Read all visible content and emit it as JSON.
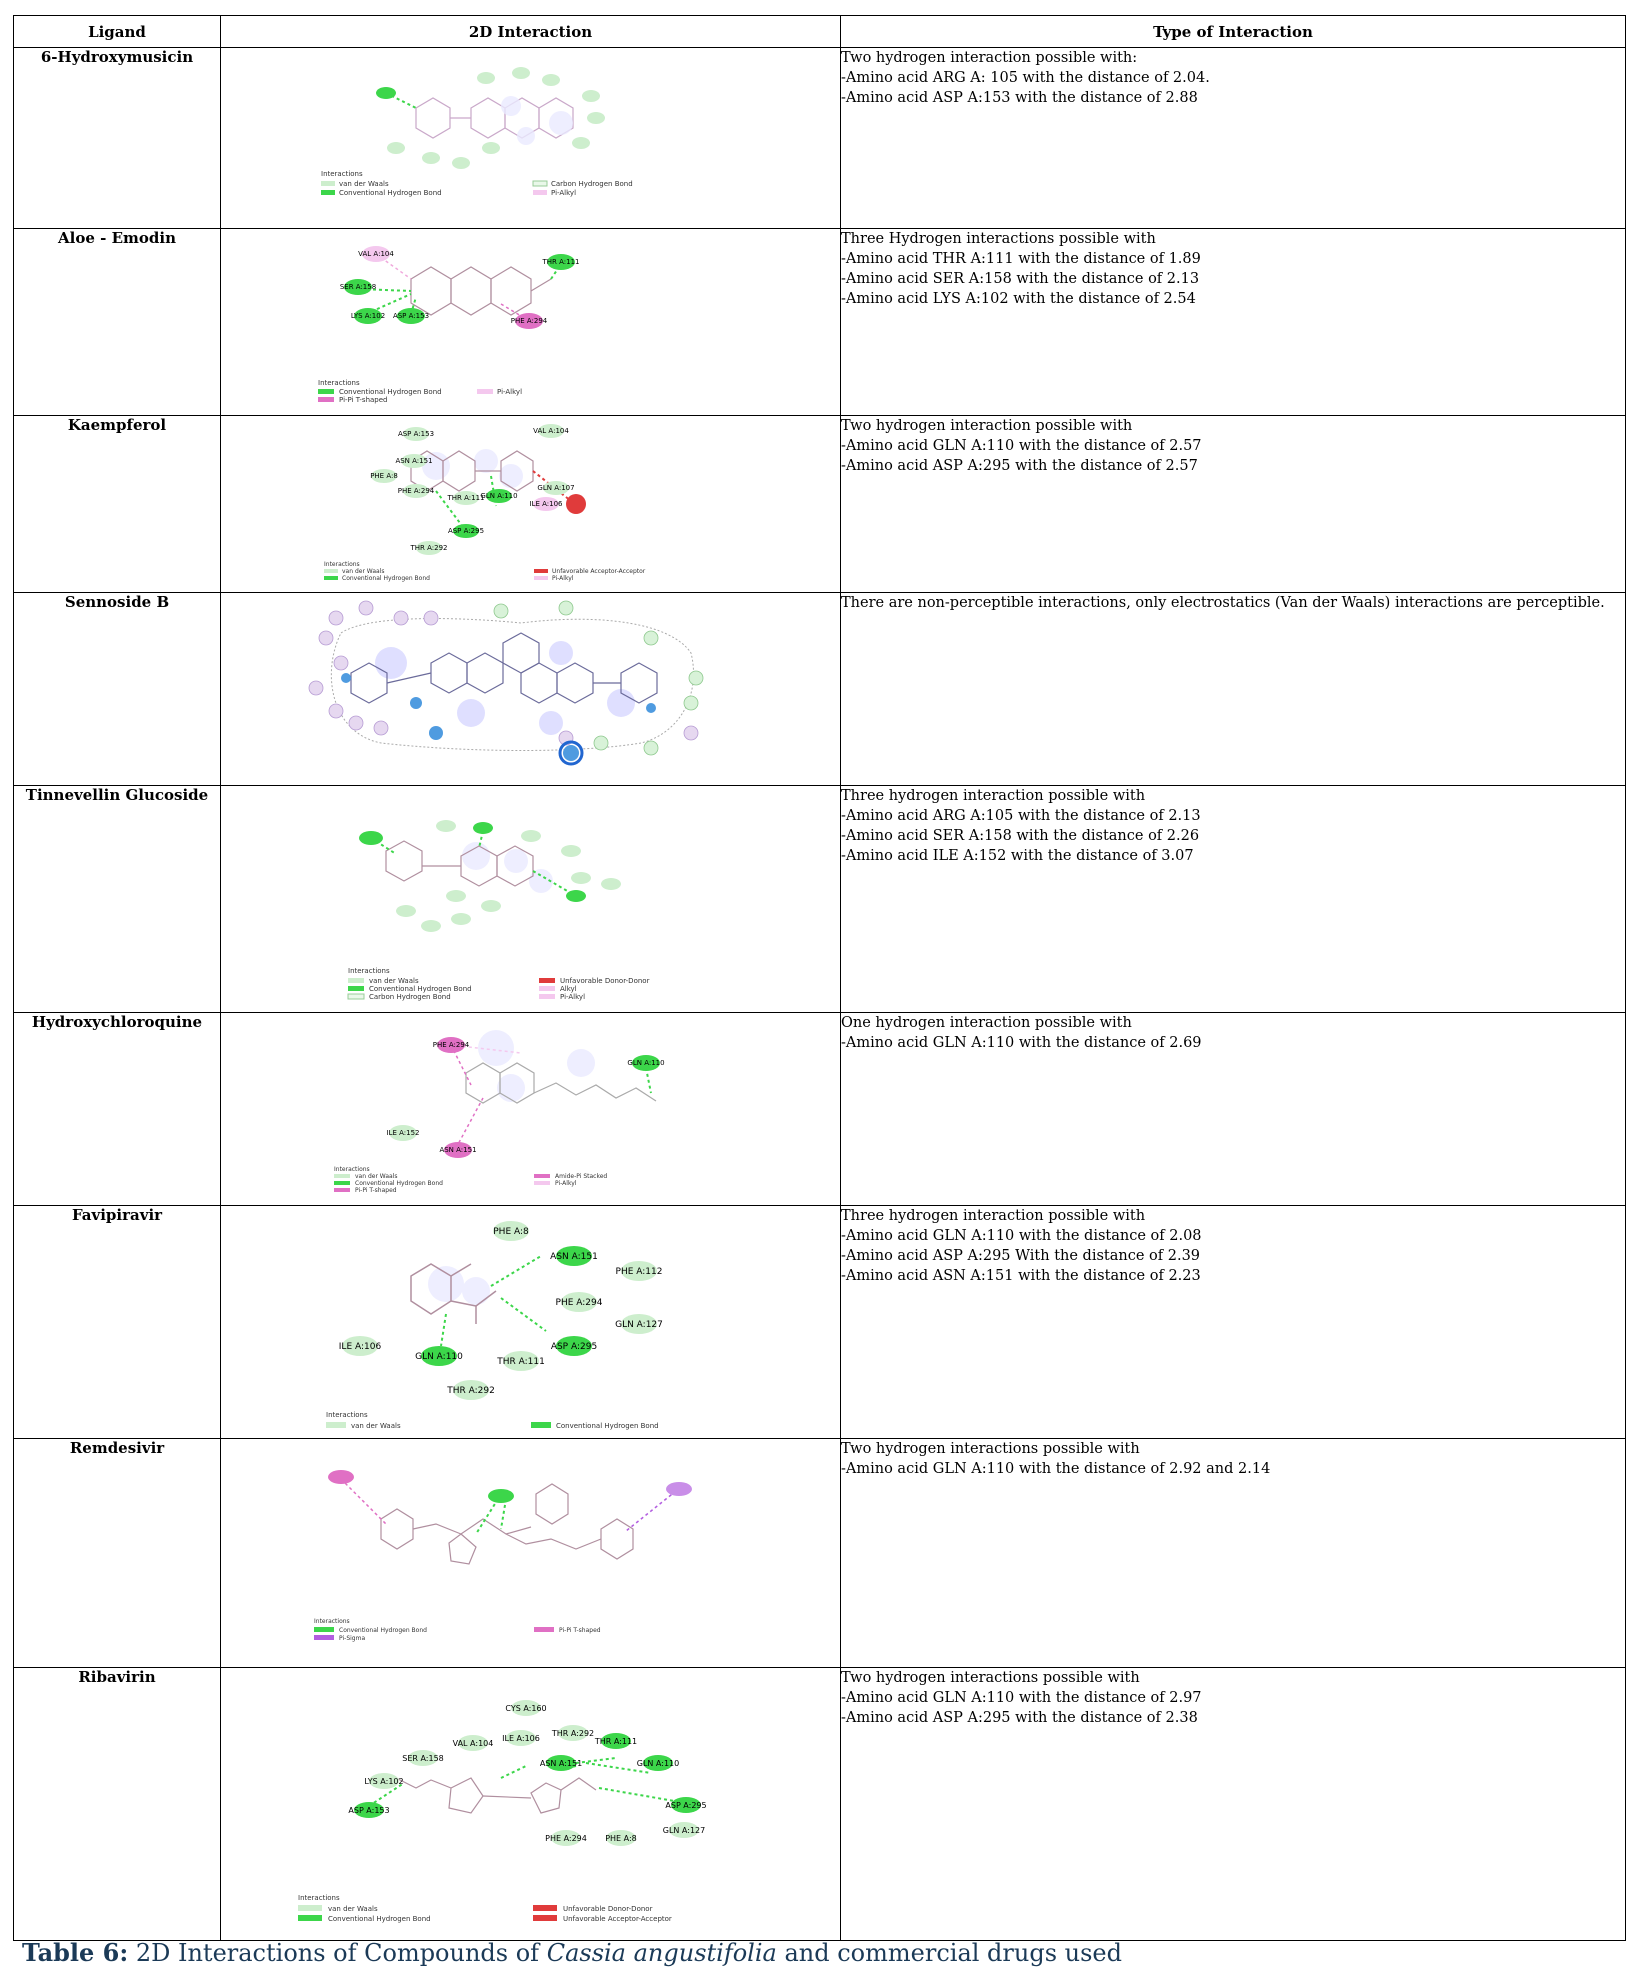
{
  "headers": [
    "Ligand",
    "2D Interaction",
    "Type of Interaction"
  ],
  "rows": [
    {
      "ligand": "6-Hydroxymusicin",
      "lines": [
        "Two hydrogen interaction possible with:",
        "-Amino acid ARG A: 105 with the distance of 2.04.",
        "-Amino acid ASP A:153 with the distance of 2.88"
      ],
      "legend": [
        "Interactions",
        "van der Waals",
        "Conventional Hydrogen Bond",
        "Carbon Hydrogen Bond",
        "Pi-Alkyl"
      ]
    },
    {
      "ligand": "Aloe - Emodin",
      "lines": [
        "Three Hydrogen interactions possible with",
        "-Amino acid THR A:111 with the distance of 1.89",
        "-Amino acid SER A:158 with the distance of 2.13",
        "-Amino acid LYS A:102 with the distance of 2.54"
      ],
      "legend": [
        "Interactions",
        "Conventional Hydrogen Bond",
        "Pi-Pi T-shaped",
        "Pi-Alkyl"
      ]
    },
    {
      "ligand": "Kaempferol",
      "lines": [
        "Two hydrogen interaction possible with",
        "-Amino acid GLN A:110 with the distance of 2.57",
        "-Amino acid ASP A:295 with the distance of 2.57"
      ],
      "legend": [
        "Interactions",
        "van der Waals",
        "Conventional Hydrogen Bond",
        "Unfavorable Acceptor-Acceptor",
        "Pi-Alkyl"
      ]
    },
    {
      "ligand": "Sennoside B",
      "lines": [
        "There are non-perceptible interactions, only electrostatics (Van der Waals) interactions are perceptible."
      ],
      "legend": []
    },
    {
      "ligand": "Tinnevellin Glucoside",
      "lines": [
        "Three hydrogen interaction possible with",
        "-Amino acid ARG A:105 with the distance of 2.13",
        "-Amino acid SER A:158 with the distance of 2.26",
        "-Amino acid ILE A:152 with the distance of 3.07"
      ],
      "legend": [
        "Interactions",
        "van der Waals",
        "Conventional Hydrogen Bond",
        "Carbon Hydrogen Bond",
        "Unfavorable Donor-Donor",
        "Alkyl",
        "Pi-Alkyl"
      ]
    },
    {
      "ligand": "Hydroxychloroquine",
      "lines": [
        "One hydrogen interaction possible with",
        "-Amino acid GLN A:110 with the distance of 2.69"
      ],
      "legend": [
        "Interactions",
        "van der Waals",
        "Conventional Hydrogen Bond",
        "Pi-Pi T-shaped",
        "Amide-Pi Stacked",
        "Pi-Alkyl"
      ]
    },
    {
      "ligand": "Favipiravir",
      "lines": [
        "Three hydrogen interaction possible with",
        "-Amino acid GLN A:110 with the distance of 2.08",
        "-Amino acid ASP A:295 With the distance of 2.39",
        "-Amino acid ASN A:151 with the distance of 2.23"
      ],
      "legend": [
        "Interactions",
        "van der Waals",
        "Conventional Hydrogen Bond"
      ]
    },
    {
      "ligand": "Remdesivir",
      "lines": [
        "Two hydrogen interactions possible with",
        "-Amino acid GLN A:110 with the distance of 2.92 and 2.14"
      ],
      "legend": [
        "Interactions",
        "Conventional Hydrogen Bond",
        "Pi-Sigma",
        "Pi-Pi T-shaped"
      ]
    },
    {
      "ligand": "Ribavirin",
      "lines": [
        "Two hydrogen interactions possible with",
        "-Amino acid GLN A:110 with the distance of 2.97",
        "-Amino acid ASP A:295 with the distance of 2.38"
      ],
      "legend": [
        "Interactions",
        "van der Waals",
        "Conventional Hydrogen Bond",
        "Unfavorable Donor-Donor",
        "Unfavorable Acceptor-Acceptor"
      ]
    }
  ],
  "residues": {
    "favipiravir": [
      "PHE A:8",
      "ASN A:151",
      "PHE A:112",
      "PHE A:294",
      "GLN A:127",
      "ILE A:106",
      "GLN A:110",
      "THR A:111",
      "ASP A:295",
      "THR A:292"
    ],
    "ribavirin": [
      "CYS A:160",
      "THR A:292",
      "VAL A:104",
      "ILE A:106",
      "THR A:111",
      "SER A:158",
      "ASN A:151",
      "GLN A:110",
      "LYS A:102",
      "ASP A:295",
      "ASP A:153",
      "GLN A:127",
      "PHE A:294",
      "PHE A:8"
    ],
    "aloe": [
      "VAL A:104",
      "THR A:111",
      "SER A:158",
      "LYS A:102",
      "ASP A:153",
      "PHE A:294"
    ],
    "kaempferol": [
      "ASP A:153",
      "VAL A:104",
      "ASN A:151",
      "PHE A:8",
      "PHE A:294",
      "THR A:111",
      "GLN A:110",
      "GLN A:107",
      "ILE A:106",
      "ASP A:295",
      "THR A:292"
    ],
    "hcq": [
      "PHE A:294",
      "GLN A:110",
      "ILE A:152",
      "ASN A:151"
    ]
  },
  "caption": {
    "label": "Table 6:",
    "text_before": "2D Interactions of Compounds of",
    "species": "Cassia angustifolia",
    "text_after": "and commercial drugs used"
  },
  "colors": {
    "vdw": "#cdeecd",
    "hbond": "#3cd64a",
    "pi_alkyl": "#f4c8ee",
    "pi_t": "#e070c4",
    "unfavorable": "#e03b3b",
    "pi_sigma": "#b35ee0",
    "caption": "#1b3a57"
  }
}
